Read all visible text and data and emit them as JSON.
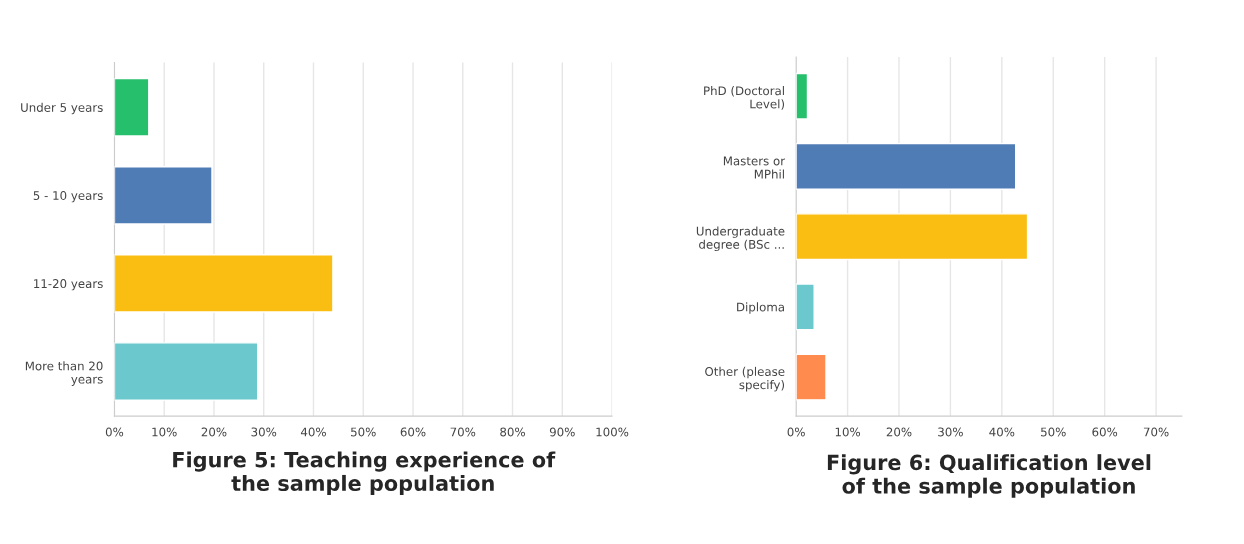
{
  "chart_data": [
    {
      "type": "bar",
      "orientation": "horizontal",
      "title": "Figure 5: Teaching experience of\nthe sample population",
      "categories": [
        "Under 5 years",
        "5 - 10 years",
        "11-20 years",
        "More than 20\nyears"
      ],
      "values": [
        6.9,
        19.6,
        43.9,
        28.8
      ],
      "colors": [
        "#26bf6b",
        "#507cb6",
        "#f9be11",
        "#6bc8cd"
      ],
      "xlim": [
        0,
        100
      ],
      "xticks": [
        {
          "value": 0,
          "label": "0%"
        },
        {
          "value": 10,
          "label": "10%"
        },
        {
          "value": 20,
          "label": "20%"
        },
        {
          "value": 30,
          "label": "30%"
        },
        {
          "value": 40,
          "label": "40%"
        },
        {
          "value": 50,
          "label": "50%"
        },
        {
          "value": 60,
          "label": "60%"
        },
        {
          "value": 70,
          "label": "70%"
        },
        {
          "value": 80,
          "label": "80%"
        },
        {
          "value": 90,
          "label": "90%"
        },
        {
          "value": 100,
          "label": "100%"
        }
      ],
      "grid": "x",
      "legend": false
    },
    {
      "type": "bar",
      "orientation": "horizontal",
      "title": "Figure 6: Qualification level\nof the sample population",
      "categories": [
        "PhD (Doctoral\nLevel)",
        "Masters or\nMPhil",
        "Undergraduate\ndegree (BSc ...",
        "Diploma",
        "Other (please\nspecify)"
      ],
      "values": [
        2.2,
        42.7,
        45.0,
        3.5,
        5.8
      ],
      "colors": [
        "#26bf6b",
        "#507cb6",
        "#f9be11",
        "#6bc8cd",
        "#ff8b4f"
      ],
      "xlim": [
        0,
        75
      ],
      "xticks": [
        {
          "value": 0,
          "label": "0%"
        },
        {
          "value": 10,
          "label": "10%"
        },
        {
          "value": 20,
          "label": "20%"
        },
        {
          "value": 30,
          "label": "30%"
        },
        {
          "value": 40,
          "label": "40%"
        },
        {
          "value": 50,
          "label": "50%"
        },
        {
          "value": 60,
          "label": "60%"
        },
        {
          "value": 70,
          "label": "70%"
        }
      ],
      "grid": "x",
      "legend": false
    }
  ]
}
